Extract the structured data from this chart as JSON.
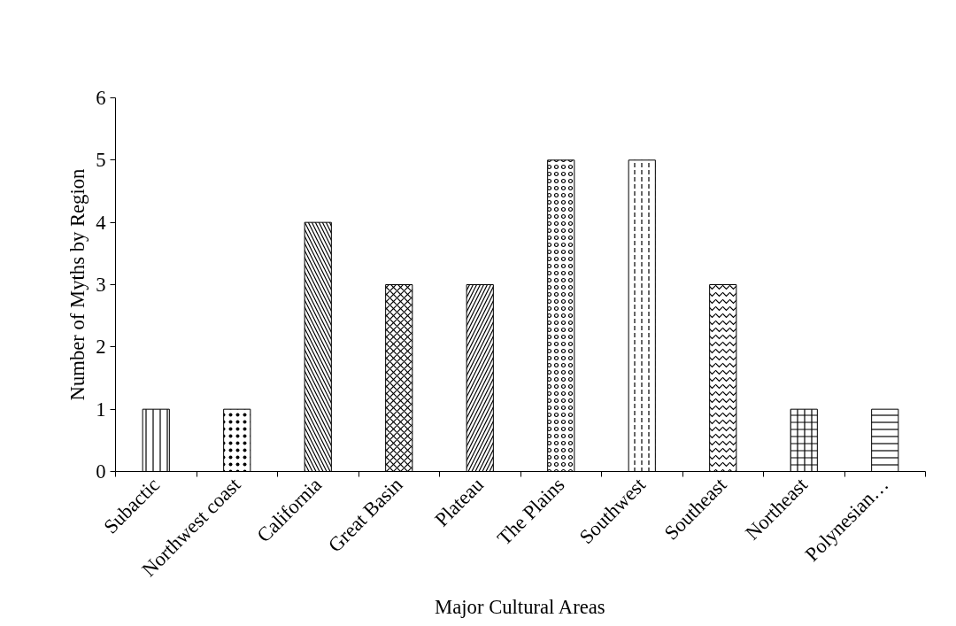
{
  "chart_data": {
    "type": "bar",
    "xlabel": "Major Cultural Areas",
    "ylabel": "Number of Myths by Region",
    "categories": [
      "Subactic",
      "Northwest coast",
      "California",
      "Great Basin",
      "Plateau",
      "The Plains",
      "Southwest",
      "Southeast",
      "Northeast",
      "Polynesian…"
    ],
    "values": [
      1,
      1,
      4,
      3,
      3,
      5,
      5,
      3,
      1,
      1
    ],
    "color": "#000000",
    "ylim": [
      0,
      6
    ],
    "yticks": [
      0,
      1,
      2,
      3,
      4,
      5,
      6
    ],
    "grid": false
  }
}
